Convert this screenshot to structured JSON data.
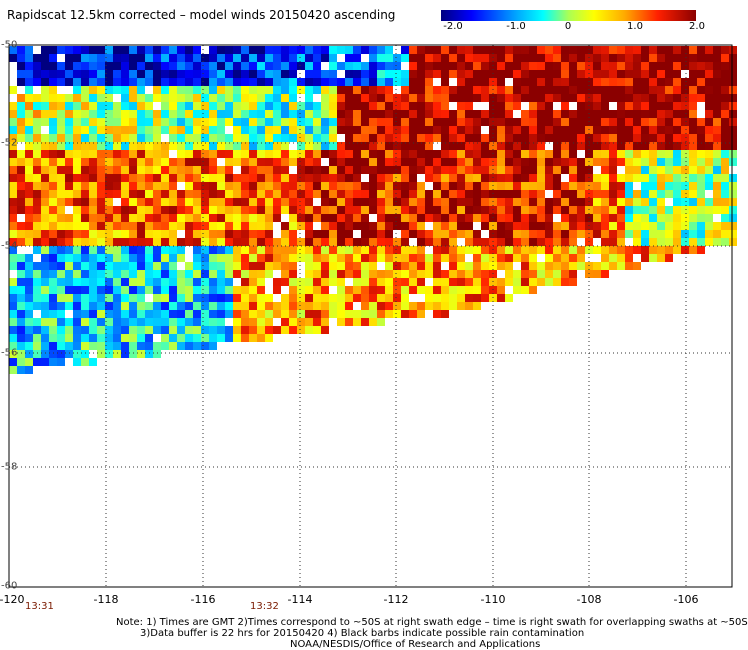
{
  "title": "Rapidscat 12.5km corrected – model winds 20150420 ascending",
  "colorbar": {
    "labels": [
      "-2.0",
      "-1.0",
      "0",
      "1.0",
      "2.0"
    ],
    "range": [
      -2.0,
      2.0
    ]
  },
  "axes": {
    "x_ticks": [
      "-120",
      "-118",
      "-116",
      "-114",
      "-112",
      "-110",
      "-108",
      "-106"
    ],
    "y_ticks": [
      "-50",
      "-52",
      "-54",
      "-56",
      "-58",
      "-60"
    ],
    "lon_range": [
      -120,
      -105
    ],
    "lat_range": [
      -60,
      -50
    ]
  },
  "times": [
    "13:31",
    "13:32"
  ],
  "notes": [
    "Note: 1) Times are GMT 2)Times correspond to ~50S at right swath edge – time is right swath for overlapping swaths at ~50S",
    "3)Data buffer is 22 hrs for 20150420 4) Black barbs indicate possible rain contamination",
    "NOAA/NESDIS/Office of Research and Applications"
  ],
  "colors": {
    "plot_border": "#000000",
    "grid": "#444444",
    "time_label": "#7a1a00"
  }
}
